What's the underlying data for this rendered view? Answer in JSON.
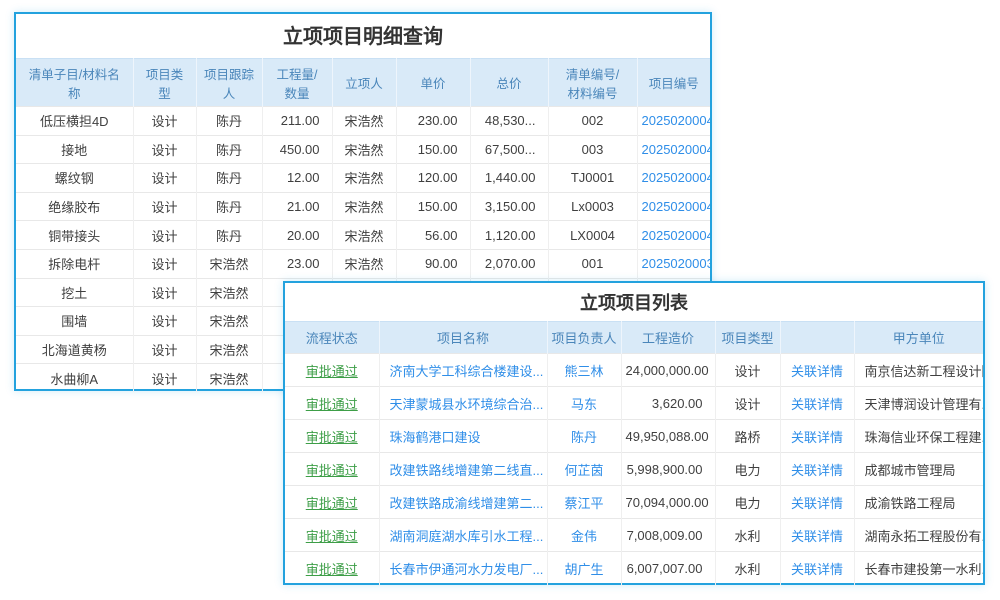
{
  "colors": {
    "panel_border": "#23a2de",
    "header_bg": "#d9eaf8",
    "header_text": "#4a86ba",
    "link_blue": "#2f8ee8",
    "status_green": "#3d9e47",
    "body_text": "#3f3f3f"
  },
  "detail_panel": {
    "title": "立项项目明细查询",
    "columns": [
      "清单子目/材料名\n称",
      "项目类\n型",
      "项目跟踪\n人",
      "工程量/\n数量",
      "立项人",
      "单价",
      "总价",
      "清单编号/\n材料编号",
      "项目编号"
    ],
    "rows": [
      [
        "低压横担4D",
        "设计",
        "陈丹",
        "211.00",
        "宋浩然",
        "230.00",
        "48,530...",
        "002",
        "2025020004"
      ],
      [
        "接地",
        "设计",
        "陈丹",
        "450.00",
        "宋浩然",
        "150.00",
        "67,500...",
        "003",
        "2025020004"
      ],
      [
        "螺纹钢",
        "设计",
        "陈丹",
        "12.00",
        "宋浩然",
        "120.00",
        "1,440.00",
        "TJ0001",
        "2025020004"
      ],
      [
        "绝缘胶布",
        "设计",
        "陈丹",
        "21.00",
        "宋浩然",
        "150.00",
        "3,150.00",
        "Lx0003",
        "2025020004"
      ],
      [
        "铜带接头",
        "设计",
        "陈丹",
        "20.00",
        "宋浩然",
        "56.00",
        "1,120.00",
        "LX0004",
        "2025020004"
      ],
      [
        "拆除电杆",
        "设计",
        "宋浩然",
        "23.00",
        "宋浩然",
        "90.00",
        "2,070.00",
        "001",
        "2025020003"
      ],
      [
        "挖土",
        "设计",
        "宋浩然",
        "",
        "",
        "",
        "",
        "",
        ""
      ],
      [
        "围墙",
        "设计",
        "宋浩然",
        "",
        "",
        "",
        "",
        "",
        ""
      ],
      [
        "北海道黄杨",
        "设计",
        "宋浩然",
        "",
        "",
        "",
        "",
        "",
        ""
      ],
      [
        "水曲柳A",
        "设计",
        "宋浩然",
        "",
        "",
        "",
        "",
        "",
        ""
      ]
    ]
  },
  "list_panel": {
    "title": "立项项目列表",
    "columns": [
      "流程状态",
      "项目名称",
      "项目负责人",
      "工程造价",
      "项目类型",
      "",
      "甲方单位"
    ],
    "rows": [
      [
        "审批通过",
        "济南大学工科综合楼建设...",
        "熊三林",
        "24,000,000.00",
        "设计",
        "关联详情",
        "南京信达新工程设计院"
      ],
      [
        "审批通过",
        "天津蒙城县水环境综合治...",
        "马东",
        "3,620.00",
        "设计",
        "关联详情",
        "天津博润设计管理有..."
      ],
      [
        "审批通过",
        "珠海鹤港口建设",
        "陈丹",
        "49,950,088.00",
        "路桥",
        "关联详情",
        "珠海信业环保工程建..."
      ],
      [
        "审批通过",
        "改建铁路线增建第二线直...",
        "何芷茵",
        "5,998,900.00",
        "电力",
        "关联详情",
        "成都城市管理局"
      ],
      [
        "审批通过",
        "改建铁路成渝线增建第二...",
        "蔡江平",
        "70,094,000.00",
        "电力",
        "关联详情",
        "成渝铁路工程局"
      ],
      [
        "审批通过",
        "湖南洞庭湖水库引水工程...",
        "金伟",
        "7,008,009.00",
        "水利",
        "关联详情",
        "湖南永拓工程股份有..."
      ],
      [
        "审批通过",
        "长春市伊通河水力发电厂...",
        "胡广生",
        "6,007,007.00",
        "水利",
        "关联详情",
        "长春市建投第一水利..."
      ]
    ]
  }
}
